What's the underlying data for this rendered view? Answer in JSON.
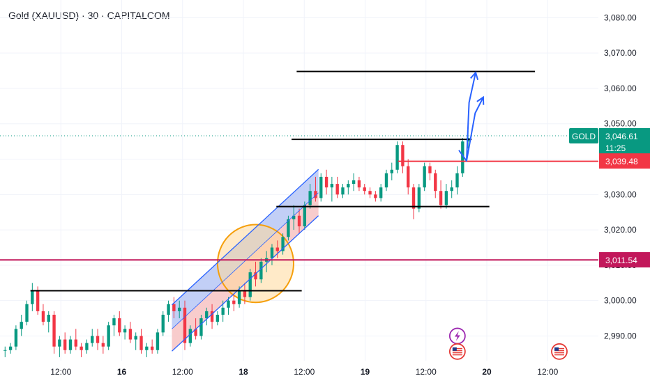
{
  "header": {
    "title": "Gold (XAUUSD) · 30 · CAPITALCOM"
  },
  "chart_data": {
    "type": "candlestick",
    "y_axis": {
      "ticks": [
        "3,080.00",
        "3,070.00",
        "3,060.00",
        "3,050.00",
        "3,040.00",
        "3,030.00",
        "3,020.00",
        "3,010.00",
        "3,000.00",
        "2,990.00"
      ],
      "tick_values": [
        3080,
        3070,
        3060,
        3050,
        3040,
        3030,
        3020,
        3010,
        3000,
        2990
      ],
      "ylim": [
        2983,
        3085
      ]
    },
    "x_axis": {
      "ticks": [
        {
          "label": "12:00",
          "bold": false,
          "t": 12
        },
        {
          "label": "16",
          "bold": true,
          "t": 24
        },
        {
          "label": "12:00",
          "bold": false,
          "t": 36
        },
        {
          "label": "18",
          "bold": true,
          "t": 48
        },
        {
          "label": "12:00",
          "bold": false,
          "t": 60
        },
        {
          "label": "19",
          "bold": true,
          "t": 72
        },
        {
          "label": "12:00",
          "bold": false,
          "t": 84
        },
        {
          "label": "20",
          "bold": true,
          "t": 96
        },
        {
          "label": "12:00",
          "bold": false,
          "t": 108
        }
      ],
      "xlim": [
        0,
        118
      ]
    },
    "current_price": {
      "symbol": "GOLD",
      "value": "3,046.61",
      "countdown": "11:25",
      "level": 3046.61,
      "color": "#089981"
    },
    "price_labels": [
      {
        "value": "3,039.48",
        "level": 3039.48,
        "color": "#f23645"
      },
      {
        "value": "3,011.54",
        "level": 3011.54,
        "color": "#c2185b"
      }
    ],
    "levels": [
      {
        "y": 3064.8,
        "x1": 58.5,
        "x2": 105.5,
        "color": "#000000"
      },
      {
        "y": 3045.6,
        "x1": 57.5,
        "x2": 93.0,
        "color": "#000000"
      },
      {
        "y": 3039.4,
        "x1": 78.5,
        "x2": 118,
        "color": "#f23645"
      },
      {
        "y": 3026.6,
        "x1": 54.5,
        "x2": 96.5,
        "color": "#000000"
      },
      {
        "y": 3011.5,
        "x1": 0,
        "x2": 118,
        "color": "#c2185b"
      },
      {
        "y": 3002.8,
        "x1": 6.0,
        "x2": 59.5,
        "color": "#000000"
      }
    ],
    "channel": {
      "upper": [
        [
          33.9,
          2998.8
        ],
        [
          62.8,
          3037.1
        ]
      ],
      "lower": [
        [
          33.9,
          2985.7
        ],
        [
          62.8,
          3024.0
        ]
      ],
      "mid": [
        [
          33.9,
          2992.0
        ],
        [
          62.8,
          3030.5
        ]
      ],
      "upper_fill": "#b7c7f5",
      "lower_fill": "#f7c3c3",
      "line": "#2962ff"
    },
    "highlight_ellipse": {
      "cx": 50.4,
      "cy": 3010.5,
      "rx": 7.5,
      "ry": 11.0,
      "fill": "#ffd89a",
      "stroke": "#f59f0b"
    },
    "projection_arrows": [
      [
        [
          90.5,
          3042.5
        ],
        [
          92.0,
          3039.5
        ],
        [
          93.7,
          3053.0
        ],
        [
          95.3,
          3057.5
        ]
      ],
      [
        [
          92.0,
          3039.5
        ],
        [
          92.5,
          3056.0
        ],
        [
          93.8,
          3064.5
        ]
      ]
    ],
    "event_markers": [
      {
        "t": 90.2,
        "y": 2990.0,
        "kind": "lightning-icon"
      },
      {
        "t": 90.2,
        "y": 2985.6,
        "kind": "us-flag-icon"
      },
      {
        "t": 110.3,
        "y": 2985.6,
        "kind": "us-flag-icon"
      }
    ],
    "colors": {
      "up": "#089981",
      "down": "#f23645",
      "grid": "#f0f3fa"
    },
    "candles": [
      [
        2986,
        2987,
        2984,
        2986
      ],
      [
        2986,
        2988,
        2985,
        2987
      ],
      [
        2987,
        2993,
        2986,
        2992
      ],
      [
        2992,
        2996,
        2990,
        2994
      ],
      [
        2994,
        3000,
        2993,
        2999
      ],
      [
        2999,
        3005,
        2997,
        3003
      ],
      [
        3003,
        3004,
        2996,
        2997
      ],
      [
        2997,
        2999,
        2993,
        2994
      ],
      [
        2994,
        2997,
        2991,
        2996
      ],
      [
        2996,
        2997,
        2985,
        2987
      ],
      [
        2987,
        2990,
        2984,
        2989
      ],
      [
        2989,
        2991,
        2985,
        2986
      ],
      [
        2986,
        2990,
        2985,
        2989
      ],
      [
        2989,
        2992,
        2986,
        2987
      ],
      [
        2987,
        2988,
        2984,
        2986
      ],
      [
        2986,
        2989,
        2985,
        2988
      ],
      [
        2988,
        2992,
        2987,
        2990
      ],
      [
        2990,
        2992,
        2986,
        2988
      ],
      [
        2988,
        2990,
        2985,
        2987
      ],
      [
        2987,
        2994,
        2986,
        2993
      ],
      [
        2993,
        2996,
        2990,
        2995
      ],
      [
        2995,
        2997,
        2990,
        2991
      ],
      [
        2991,
        2993,
        2989,
        2992
      ],
      [
        2992,
        2994,
        2988,
        2989
      ],
      [
        2989,
        2991,
        2986,
        2990
      ],
      [
        2990,
        2992,
        2985,
        2986
      ],
      [
        2986,
        2988,
        2984,
        2987
      ],
      [
        2987,
        2989,
        2985,
        2986
      ],
      [
        2986,
        2992,
        2985,
        2991
      ],
      [
        2991,
        2997,
        2990,
        2996
      ],
      [
        2996,
        3000,
        2994,
        2999
      ],
      [
        2999,
        3001,
        2995,
        2997
      ],
      [
        2997,
        3000,
        2995,
        2998
      ],
      [
        2998,
        3000,
        2986,
        2988
      ],
      [
        2988,
        2993,
        2987,
        2992
      ],
      [
        2992,
        2995,
        2989,
        2990
      ],
      [
        2990,
        2996,
        2989,
        2995
      ],
      [
        2995,
        2998,
        2993,
        2997
      ],
      [
        2997,
        2999,
        2992,
        2994
      ],
      [
        2994,
        2997,
        2993,
        2996
      ],
      [
        2996,
        3000,
        2994,
        2998
      ],
      [
        2998,
        3001,
        2996,
        3000
      ],
      [
        3000,
        3002,
        2997,
        2999
      ],
      [
        2999,
        3004,
        2998,
        3003
      ],
      [
        3003,
        3005,
        2999,
        3001
      ],
      [
        3001,
        3009,
        3000,
        3008
      ],
      [
        3008,
        3011,
        3004,
        3006
      ],
      [
        3006,
        3012,
        3005,
        3011
      ],
      [
        3011,
        3014,
        3008,
        3012
      ],
      [
        3012,
        3016,
        3010,
        3015
      ],
      [
        3015,
        3017,
        3012,
        3014
      ],
      [
        3014,
        3019,
        3013,
        3018
      ],
      [
        3018,
        3024,
        3017,
        3023
      ],
      [
        3023,
        3027,
        3020,
        3024
      ],
      [
        3024,
        3026,
        3019,
        3021
      ],
      [
        3021,
        3028,
        3020,
        3027
      ],
      [
        3027,
        3033,
        3026,
        3031
      ],
      [
        3031,
        3035,
        3028,
        3029
      ],
      [
        3029,
        3036,
        3028,
        3035
      ],
      [
        3035,
        3037,
        3030,
        3032
      ],
      [
        3032,
        3035,
        3028,
        3033
      ],
      [
        3033,
        3035,
        3029,
        3030
      ],
      [
        3030,
        3033,
        3029,
        3032
      ],
      [
        3032,
        3034,
        3030,
        3033
      ],
      [
        3033,
        3036,
        3031,
        3034
      ],
      [
        3034,
        3035,
        3031,
        3032
      ],
      [
        3032,
        3033,
        3030,
        3031
      ],
      [
        3031,
        3032,
        3029,
        3030
      ],
      [
        3030,
        3031,
        3028,
        3029
      ],
      [
        3029,
        3033,
        3028,
        3032
      ],
      [
        3032,
        3037,
        3031,
        3036
      ],
      [
        3036,
        3039,
        3034,
        3037
      ],
      [
        3037,
        3045,
        3036,
        3044
      ],
      [
        3044,
        3045,
        3036,
        3038
      ],
      [
        3038,
        3040,
        3030,
        3032
      ],
      [
        3032,
        3033,
        3023,
        3026
      ],
      [
        3026,
        3033,
        3025,
        3032
      ],
      [
        3032,
        3039,
        3031,
        3038
      ],
      [
        3038,
        3039,
        3034,
        3036
      ],
      [
        3036,
        3037,
        3029,
        3031
      ],
      [
        3031,
        3034,
        3026,
        3027
      ],
      [
        3027,
        3033,
        3026,
        3031
      ],
      [
        3031,
        3034,
        3029,
        3032
      ],
      [
        3032,
        3038,
        3030,
        3036
      ],
      [
        3036,
        3046,
        3035,
        3045
      ],
      [
        3045,
        3048,
        3043,
        3046
      ]
    ]
  }
}
